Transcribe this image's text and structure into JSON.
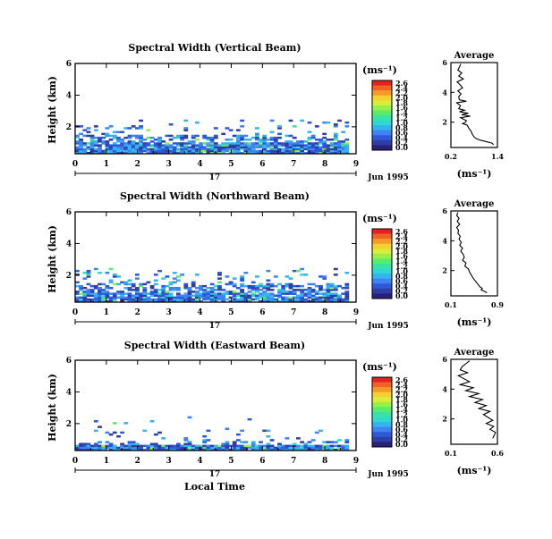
{
  "figure": {
    "xlabel": "Local Time",
    "day_label": "17",
    "month_label": "Jun 1995",
    "x_ticks": [
      "0",
      "1",
      "2",
      "3",
      "4",
      "5",
      "6",
      "7",
      "8",
      "9"
    ],
    "unit_label": "(ms⁻¹)",
    "colorbar_ticks": [
      "2.6",
      "2.4",
      "2.2",
      "2.0",
      "1.8",
      "1.6",
      "1.4",
      "1.2",
      "1.0",
      "0.8",
      "0.6",
      "0.4",
      "0.2",
      "0.0"
    ],
    "average_title": "Average",
    "average_xlabel": "(ms⁻¹)"
  },
  "colors": {
    "colormap": [
      "#2a1f7a",
      "#2e3ea3",
      "#2f57d9",
      "#3f83f2",
      "#35b3ee",
      "#2fd8d2",
      "#39e3a0",
      "#57ec6a",
      "#96f04a",
      "#d7ee3a",
      "#f6cf33",
      "#f59a2a",
      "#ef6324",
      "#e2231e"
    ]
  },
  "chart_data": [
    {
      "type": "heatmap",
      "title": "Spectral Width (Vertical Beam)",
      "ylabel": "Height (km)",
      "xlim": [
        0,
        9
      ],
      "ylim": [
        0.3,
        6
      ],
      "y_ticks": [
        "6",
        "4",
        "2"
      ],
      "profile": {
        "type": "line",
        "title": "Average",
        "x_ticks": [
          "0.2",
          "1.4"
        ],
        "xlim": [
          0.2,
          1.4
        ],
        "ylim": [
          0.3,
          6
        ],
        "y_ticks": [
          "6",
          "4",
          "2"
        ],
        "x": [
          0.45,
          0.42,
          0.38,
          0.48,
          0.4,
          0.52,
          0.36,
          0.44,
          0.5,
          0.38,
          0.46,
          0.4,
          0.42,
          0.6,
          0.35,
          0.45,
          0.4,
          0.55,
          0.42,
          0.65,
          0.48,
          0.7,
          0.45,
          0.52,
          0.6,
          0.58,
          0.5,
          0.62,
          0.66,
          0.72,
          0.75,
          0.8,
          0.85,
          0.95,
          1.1,
          1.25,
          1.3
        ],
        "y": [
          5.9,
          5.7,
          5.5,
          5.3,
          5.1,
          4.9,
          4.7,
          4.5,
          4.3,
          4.1,
          3.9,
          3.7,
          3.5,
          3.4,
          3.3,
          3.1,
          2.9,
          2.8,
          2.7,
          2.6,
          2.5,
          2.4,
          2.3,
          2.2,
          2.1,
          2.0,
          1.9,
          1.8,
          1.6,
          1.4,
          1.2,
          1.0,
          0.9,
          0.8,
          0.7,
          0.6,
          0.5
        ]
      }
    },
    {
      "type": "heatmap",
      "title": "Spectral Width (Northward Beam)",
      "ylabel": "Height (km)",
      "xlim": [
        0,
        9
      ],
      "ylim": [
        0.3,
        6
      ],
      "y_ticks": [
        "6",
        "4",
        "2"
      ],
      "profile": {
        "type": "line",
        "title": "Average",
        "x_ticks": [
          "0.1",
          "0.9"
        ],
        "xlim": [
          0.1,
          0.9
        ],
        "ylim": [
          0.3,
          6
        ],
        "y_ticks": [
          "6",
          "4",
          "2"
        ],
        "x": [
          0.22,
          0.2,
          0.24,
          0.21,
          0.25,
          0.2,
          0.23,
          0.22,
          0.26,
          0.24,
          0.28,
          0.25,
          0.3,
          0.27,
          0.31,
          0.33,
          0.3,
          0.36,
          0.34,
          0.4,
          0.42,
          0.45,
          0.48,
          0.52,
          0.56,
          0.6,
          0.64,
          0.62,
          0.68,
          0.72
        ],
        "y": [
          5.9,
          5.7,
          5.5,
          5.3,
          5.1,
          4.9,
          4.7,
          4.5,
          4.3,
          4.1,
          3.9,
          3.7,
          3.5,
          3.3,
          3.1,
          2.9,
          2.7,
          2.5,
          2.3,
          2.1,
          1.9,
          1.7,
          1.5,
          1.3,
          1.1,
          0.9,
          0.8,
          0.7,
          0.6,
          0.5
        ]
      }
    },
    {
      "type": "heatmap",
      "title": "Spectral Width (Eastward Beam)",
      "ylabel": "Height (km)",
      "xlim": [
        0,
        9
      ],
      "ylim": [
        0.3,
        6
      ],
      "y_ticks": [
        "6",
        "4",
        "2"
      ],
      "profile": {
        "type": "line",
        "title": "Average",
        "x_ticks": [
          "0.1",
          "0.6"
        ],
        "xlim": [
          0.1,
          0.6
        ],
        "ylim": [
          0.3,
          6
        ],
        "y_ticks": [
          "6",
          "4",
          "2"
        ],
        "x": [
          0.3,
          0.26,
          0.22,
          0.2,
          0.28,
          0.18,
          0.24,
          0.3,
          0.2,
          0.34,
          0.26,
          0.4,
          0.3,
          0.44,
          0.36,
          0.48,
          0.4,
          0.52,
          0.45,
          0.5,
          0.55,
          0.48,
          0.56,
          0.52,
          0.58,
          0.55
        ],
        "y": [
          5.9,
          5.7,
          5.5,
          5.3,
          5.1,
          4.9,
          4.7,
          4.5,
          4.3,
          4.1,
          3.9,
          3.7,
          3.5,
          3.3,
          3.1,
          2.9,
          2.7,
          2.5,
          2.3,
          2.1,
          1.9,
          1.7,
          1.5,
          1.3,
          1.1,
          0.7
        ]
      }
    }
  ]
}
